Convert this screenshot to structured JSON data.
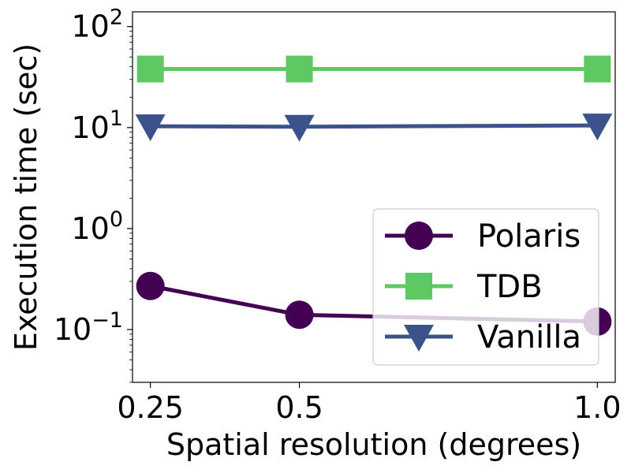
{
  "chart_data": {
    "type": "line",
    "xlabel": "Spatial resolution (degrees)",
    "ylabel": "Execution time (sec)",
    "yscale": "log",
    "ylim": [
      0.03,
      140
    ],
    "x": [
      0.25,
      0.5,
      1.0
    ],
    "x_tick_labels": [
      "0.25",
      "0.5",
      "1.0"
    ],
    "y_ticks": [
      {
        "value": 0.1,
        "base": "10",
        "exp": "−1"
      },
      {
        "value": 1,
        "base": "10",
        "exp": "0"
      },
      {
        "value": 10,
        "base": "10",
        "exp": "1"
      },
      {
        "value": 100,
        "base": "10",
        "exp": "2"
      }
    ],
    "legend_position": "lower-right",
    "series": [
      {
        "name": "Polaris",
        "values": [
          0.27,
          0.14,
          0.12
        ],
        "color": "#440154",
        "marker": "circle"
      },
      {
        "name": "TDB",
        "values": [
          38,
          38,
          38
        ],
        "color": "#5ec962",
        "marker": "square"
      },
      {
        "name": "Vanilla",
        "values": [
          10.3,
          10.2,
          10.5
        ],
        "color": "#3b528b",
        "marker": "triangle-down"
      }
    ]
  }
}
